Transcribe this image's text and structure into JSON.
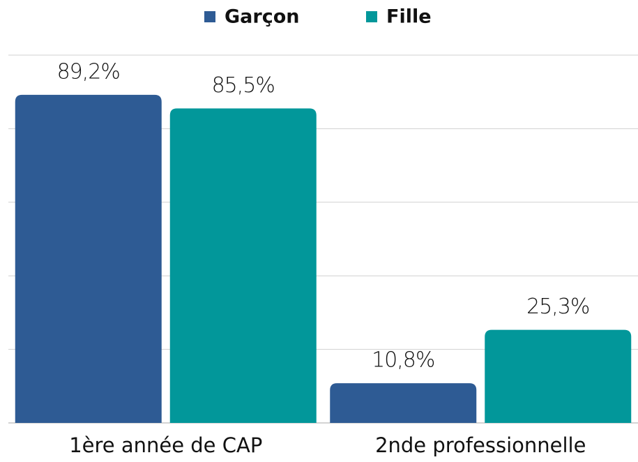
{
  "chart_data": {
    "type": "bar",
    "categories": [
      "1ère année de CAP",
      "2nde professionnelle"
    ],
    "series": [
      {
        "name": "Garçon",
        "color": "#2e5b94",
        "values": [
          89.2,
          10.8
        ],
        "value_labels": [
          "89,2%",
          "10,8%"
        ]
      },
      {
        "name": "Fille",
        "color": "#02979a",
        "values": [
          85.5,
          25.3
        ],
        "value_labels": [
          "85,5%",
          "25,3%"
        ]
      }
    ],
    "ylim": [
      0,
      100
    ],
    "yticks": [
      0,
      20,
      40,
      60,
      80,
      100
    ],
    "grid": true,
    "legend": "top"
  }
}
